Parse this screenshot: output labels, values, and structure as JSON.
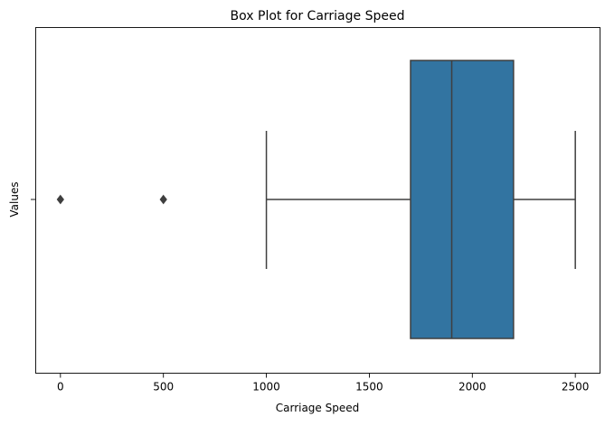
{
  "chart_data": {
    "type": "box",
    "title": "Box Plot for Carriage Speed",
    "xlabel": "Carriage Speed",
    "ylabel": "Values",
    "xlim": [
      -120,
      2620
    ],
    "x_ticks": [
      0,
      500,
      1000,
      1500,
      2000,
      2500
    ],
    "x_tick_labels": [
      "0",
      "500",
      "1000",
      "1500",
      "2000",
      "2500"
    ],
    "grid": false,
    "box": {
      "whisker_low": 1000,
      "q1": 1700,
      "median": 1900,
      "q3": 2200,
      "whisker_high": 2500,
      "outliers": [
        0,
        500
      ],
      "fill_color": "#3274a1",
      "line_color": "#3f3f3f"
    }
  }
}
